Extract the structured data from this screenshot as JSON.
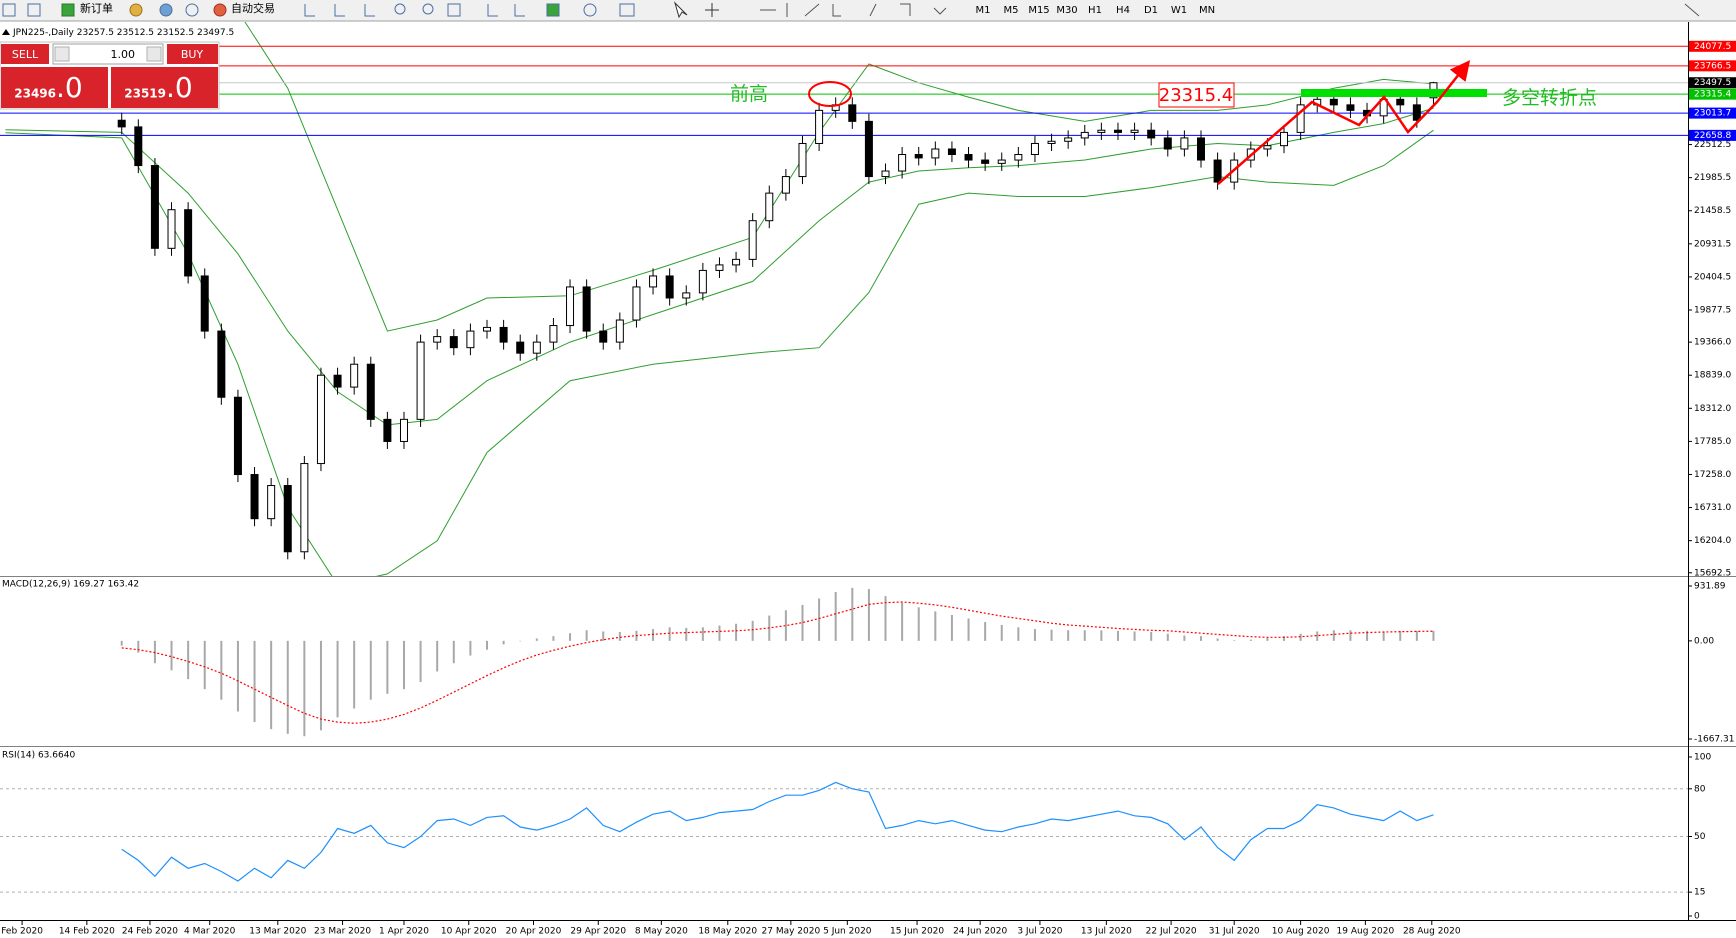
{
  "toolbar": {
    "new_order": "新订单",
    "auto_trading": "自动交易",
    "timeframes": [
      "M1",
      "M5",
      "M15",
      "M30",
      "H1",
      "H4",
      "D1",
      "W1",
      "MN"
    ]
  },
  "trade_panel": {
    "sell": "SELL",
    "buy": "BUY",
    "lot": "1.00",
    "sell_price": "23496",
    "sell_frac": ".0",
    "buy_price": "23519",
    "buy_frac": ".0"
  },
  "annotations": {
    "previous_high": "前高",
    "turning_point": "多空转折点"
  },
  "chart_data": [
    {
      "type": "candlestick",
      "title": "JPN225-,Daily  23257.5 23512.5 23152.5 23497.5",
      "up_color": "#ffffff",
      "down_color": "#000000",
      "edge_color": "#000000",
      "xlim": [
        -7.33,
        94.33
      ],
      "ylim": [
        15657,
        24428
      ],
      "yticks": [
        22512.5,
        21985.5,
        21458.5,
        20931.5,
        20404.5,
        19877.5,
        {
          "value": 19366,
          "label": "19366.0"
        },
        {
          "value": 18839,
          "label": "18839.0"
        },
        {
          "value": 18312,
          "label": "18312.0"
        },
        {
          "value": 17785,
          "label": "17785.0"
        },
        {
          "value": 17258,
          "label": "17258.0"
        },
        {
          "value": 16731,
          "label": "16731.0"
        },
        {
          "value": 16204,
          "label": "16204.0"
        },
        15692.5
      ],
      "xticks": [
        {
          "value": -6,
          "label": "Feb 2020"
        },
        {
          "value": -2.1,
          "label": "14 Feb 2020"
        },
        {
          "value": 1.7,
          "label": "24 Feb 2020"
        },
        {
          "value": 5.3,
          "label": "4 Mar 2020"
        },
        {
          "value": 9.4,
          "label": "13 Mar 2020"
        },
        {
          "value": 13.3,
          "label": "23 Mar 2020"
        },
        {
          "value": 17,
          "label": "1 Apr 2020"
        },
        {
          "value": 20.9,
          "label": "10 Apr 2020"
        },
        {
          "value": 24.8,
          "label": "20 Apr 2020"
        },
        {
          "value": 28.7,
          "label": "29 Apr 2020"
        },
        {
          "value": 32.5,
          "label": "8 May 2020"
        },
        {
          "value": 36.5,
          "label": "18 May 2020"
        },
        {
          "value": 40.3,
          "label": "27 May 2020"
        },
        {
          "value": 43.7,
          "label": "5 Jun 2020"
        },
        {
          "value": 47.9,
          "label": "15 Jun 2020"
        },
        {
          "value": 51.7,
          "label": "24 Jun 2020"
        },
        {
          "value": 55.3,
          "label": "3 Jul 2020"
        },
        {
          "value": 59.3,
          "label": "13 Jul 2020"
        },
        {
          "value": 63.2,
          "label": "22 Jul 2020"
        },
        {
          "value": 67,
          "label": "31 Jul 2020"
        },
        {
          "value": 71,
          "label": "10 Aug 2020"
        },
        {
          "value": 74.9,
          "label": "19 Aug 2020"
        },
        {
          "value": 78.9,
          "label": "28 Aug 2020"
        }
      ],
      "x": [
        0,
        1,
        2,
        3,
        4,
        5,
        6,
        7,
        8,
        9,
        10,
        11,
        12,
        13,
        14,
        15,
        16,
        17,
        18,
        19,
        20,
        21,
        22,
        23,
        24,
        25,
        26,
        27,
        28,
        29,
        30,
        31,
        32,
        33,
        34,
        35,
        36,
        37,
        38,
        39,
        40,
        41,
        42,
        43,
        44,
        45,
        46,
        47,
        48,
        49,
        50,
        51,
        52,
        53,
        54,
        55,
        56,
        57,
        58,
        59,
        60,
        61,
        62,
        63,
        64,
        65,
        66,
        67,
        68,
        69,
        70,
        71,
        72,
        73,
        74,
        75,
        76,
        77,
        78,
        79
      ],
      "open": [
        22900,
        22794,
        22178,
        20860,
        21475,
        20420,
        19542,
        18488,
        17257,
        16554,
        17082,
        16027,
        17432,
        18839,
        18650,
        19014,
        18136,
        17784,
        18136,
        19366,
        19454,
        19278,
        19542,
        19600,
        19366,
        19190,
        19366,
        19630,
        20245,
        19542,
        19366,
        19718,
        20245,
        20420,
        20069,
        20150,
        20508,
        20596,
        20684,
        21300,
        21739,
        22003,
        22530,
        23057,
        23145,
        22882,
        22003,
        22091,
        22354,
        22300,
        22442,
        22354,
        22266,
        22213,
        22266,
        22354,
        22530,
        22565,
        22618,
        22706,
        22741,
        22706,
        22741,
        22618,
        22442,
        22618,
        22266,
        21915,
        22266,
        22442,
        22495,
        22706,
        23145,
        23233,
        23145,
        23057,
        22970,
        23233,
        23145,
        23257.5
      ],
      "high": [
        23020,
        22914,
        22298,
        21595,
        21595,
        20540,
        19662,
        18608,
        17377,
        17202,
        17202,
        17552,
        18959,
        18959,
        19134,
        19134,
        18256,
        18256,
        19486,
        19574,
        19574,
        19662,
        19720,
        19720,
        19486,
        19486,
        19750,
        20365,
        20365,
        19662,
        19838,
        20365,
        20540,
        20540,
        20270,
        20628,
        20716,
        20804,
        21420,
        21859,
        22123,
        22650,
        23177,
        23265,
        23265,
        23002,
        22211,
        22474,
        22474,
        22562,
        22562,
        22474,
        22386,
        22386,
        22474,
        22650,
        22685,
        22738,
        22826,
        22861,
        22861,
        22861,
        22861,
        22738,
        22738,
        22738,
        22386,
        22386,
        22562,
        22615,
        22826,
        23265,
        23353,
        23353,
        23265,
        23177,
        23353,
        23353,
        23265,
        23512.5
      ],
      "low": [
        22674,
        22058,
        20740,
        20740,
        20300,
        19422,
        18368,
        17137,
        16434,
        16434,
        15907,
        15907,
        17312,
        18530,
        18530,
        18016,
        17664,
        17664,
        18016,
        19246,
        19158,
        19158,
        19422,
        19246,
        19070,
        19070,
        19246,
        19510,
        19422,
        19246,
        19246,
        19598,
        20125,
        19949,
        19949,
        20030,
        20388,
        20476,
        20564,
        21180,
        21619,
        21883,
        22410,
        22937,
        22762,
        21883,
        21883,
        21971,
        22180,
        22180,
        22234,
        22146,
        22093,
        22093,
        22146,
        22234,
        22410,
        22445,
        22498,
        22586,
        22586,
        22586,
        22498,
        22322,
        22322,
        22146,
        21795,
        21795,
        22146,
        22322,
        22375,
        22586,
        23025,
        23025,
        22937,
        22850,
        22850,
        23025,
        22780,
        23152.5
      ],
      "close": [
        22794,
        22178,
        20860,
        21475,
        20420,
        19542,
        18488,
        17257,
        16554,
        17082,
        16027,
        17432,
        18839,
        18650,
        19014,
        18136,
        17784,
        18136,
        19366,
        19454,
        19278,
        19542,
        19600,
        19366,
        19190,
        19366,
        19630,
        20245,
        19542,
        19366,
        19718,
        20245,
        20420,
        20069,
        20150,
        20508,
        20596,
        20684,
        21300,
        21739,
        22003,
        22530,
        23057,
        23145,
        22882,
        22003,
        22091,
        22354,
        22300,
        22442,
        22354,
        22266,
        22213,
        22266,
        22354,
        22530,
        22565,
        22618,
        22706,
        22741,
        22706,
        22741,
        22618,
        22442,
        22618,
        22266,
        21915,
        22266,
        22442,
        22495,
        22706,
        23145,
        23233,
        23145,
        23057,
        22970,
        23233,
        23145,
        22900,
        23497.5
      ],
      "bands": {
        "color": "#2f9e2f",
        "x": [
          -7,
          0,
          4,
          7,
          10,
          13,
          16,
          19,
          22,
          27,
          32,
          38,
          42,
          45,
          48,
          51,
          54,
          58,
          62,
          66,
          69,
          73,
          76,
          79
        ],
        "upper": [
          26500,
          26000,
          25200,
          24640,
          23409,
          21475,
          19542,
          19718,
          20069,
          20104,
          20509,
          21036,
          22706,
          23796,
          23497,
          23268,
          23057,
          22882,
          23057,
          23057,
          23145,
          23409,
          23550,
          23479
        ],
        "middle": [
          22750,
          22706,
          21739,
          20772,
          19542,
          18575,
          18048,
          18136,
          18751,
          19366,
          19806,
          20333,
          21300,
          21915,
          22091,
          22143,
          22178,
          22266,
          22442,
          22530,
          22495,
          22706,
          22846,
          23093
        ],
        "lower": [
          22700,
          22618,
          20772,
          19014,
          16730,
          15500,
          15675,
          16202,
          17608,
          18751,
          19014,
          19190,
          19278,
          20157,
          21563,
          21739,
          21686,
          21686,
          21827,
          22003,
          21915,
          21862,
          22178,
          22741
        ]
      },
      "levels": [
        {
          "value": 24077.5,
          "color": "#ff0000",
          "line_color": "#ff0000"
        },
        {
          "value": 23766.5,
          "color": "#ff0000",
          "line_color": "#ff0000"
        },
        {
          "value": 23497.5,
          "color": "#000000",
          "line_color": "#c8c8c8"
        },
        {
          "value": 23315.4,
          "color": "#00c000",
          "line_color": "#00c000"
        },
        {
          "value": 23013.7,
          "color": "#0000ff",
          "line_color": "#0000ff"
        },
        {
          "value": 22658.8,
          "color": "#0000ff",
          "line_color": "#0000ff"
        }
      ]
    },
    {
      "type": "macd",
      "title": "MACD(12,26,9) 169.27 163.42",
      "hist_color": "#a8a8a8",
      "signal_color": "#ff0000",
      "xlim": [
        -7.33,
        94.33
      ],
      "ylim": [
        -1667.31,
        931.89
      ],
      "yticks": [
        931.89,
        {
          "value": 0,
          "label": "0.00"
        },
        -1667.31
      ],
      "x": [
        0,
        1,
        2,
        3,
        4,
        5,
        6,
        7,
        8,
        9,
        10,
        11,
        12,
        13,
        14,
        15,
        16,
        17,
        18,
        19,
        20,
        21,
        22,
        23,
        24,
        25,
        26,
        27,
        28,
        29,
        30,
        31,
        32,
        33,
        34,
        35,
        36,
        37,
        38,
        39,
        40,
        41,
        42,
        43,
        44,
        45,
        46,
        47,
        48,
        49,
        50,
        51,
        52,
        53,
        54,
        55,
        56,
        57,
        58,
        59,
        60,
        61,
        62,
        63,
        64,
        65,
        66,
        67,
        68,
        69,
        70,
        71,
        72,
        73,
        74,
        75,
        76,
        77,
        78,
        79
      ],
      "histogram": [
        -80,
        -200,
        -380,
        -500,
        -650,
        -820,
        -1000,
        -1200,
        -1380,
        -1500,
        -1580,
        -1620,
        -1520,
        -1300,
        -1150,
        -1000,
        -900,
        -820,
        -700,
        -520,
        -380,
        -250,
        -150,
        -60,
        0,
        40,
        80,
        130,
        180,
        160,
        150,
        170,
        200,
        230,
        220,
        230,
        260,
        290,
        340,
        430,
        520,
        610,
        720,
        830,
        900,
        880,
        760,
        650,
        570,
        500,
        440,
        380,
        320,
        270,
        230,
        200,
        190,
        180,
        180,
        180,
        170,
        160,
        150,
        120,
        90,
        80,
        40,
        10,
        20,
        50,
        80,
        120,
        160,
        180,
        180,
        170,
        160,
        170,
        170,
        169.27
      ],
      "signal": [
        -120,
        -150,
        -200,
        -270,
        -350,
        -440,
        -550,
        -680,
        -820,
        -960,
        -1100,
        -1230,
        -1330,
        -1380,
        -1400,
        -1380,
        -1330,
        -1250,
        -1140,
        -1010,
        -870,
        -730,
        -590,
        -460,
        -340,
        -240,
        -160,
        -90,
        -30,
        20,
        60,
        90,
        110,
        130,
        140,
        150,
        160,
        170,
        190,
        220,
        260,
        310,
        380,
        460,
        540,
        620,
        650,
        660,
        640,
        610,
        570,
        520,
        470,
        420,
        380,
        340,
        300,
        270,
        250,
        230,
        210,
        195,
        180,
        170,
        150,
        130,
        110,
        90,
        70,
        60,
        60,
        70,
        90,
        110,
        130,
        140,
        150,
        155,
        160,
        163.42
      ]
    },
    {
      "type": "line",
      "title": "RSI(14) 63.6640",
      "color": "#1e90ff",
      "xlim": [
        -7.33,
        94.33
      ],
      "ylim": [
        0,
        100
      ],
      "yticks": [
        100,
        80,
        50,
        15,
        0
      ],
      "grid": true,
      "x": [
        0,
        1,
        2,
        3,
        4,
        5,
        6,
        7,
        8,
        9,
        10,
        11,
        12,
        13,
        14,
        15,
        16,
        17,
        18,
        19,
        20,
        21,
        22,
        23,
        24,
        25,
        26,
        27,
        28,
        29,
        30,
        31,
        32,
        33,
        34,
        35,
        36,
        37,
        38,
        39,
        40,
        41,
        42,
        43,
        44,
        45,
        46,
        47,
        48,
        49,
        50,
        51,
        52,
        53,
        54,
        55,
        56,
        57,
        58,
        59,
        60,
        61,
        62,
        63,
        64,
        65,
        66,
        67,
        68,
        69,
        70,
        71,
        72,
        73,
        74,
        75,
        76,
        77,
        78,
        79
      ],
      "values": [
        42,
        35,
        25,
        37,
        30,
        33,
        28,
        22,
        30,
        24,
        35,
        30,
        40,
        55,
        52,
        57,
        46,
        43,
        50,
        60,
        61,
        57,
        62,
        63,
        56,
        54,
        57,
        61,
        68,
        57,
        53,
        59,
        64,
        66,
        60,
        62,
        65,
        66,
        67,
        72,
        76,
        76,
        79,
        84,
        80,
        78,
        55,
        57,
        60,
        58,
        60,
        57,
        54,
        53,
        56,
        58,
        61,
        60,
        62,
        64,
        66,
        63,
        62,
        58,
        48,
        56,
        43,
        35,
        48,
        55,
        55,
        60,
        70,
        68,
        64,
        62,
        60,
        66,
        60,
        63.664
      ]
    }
  ]
}
